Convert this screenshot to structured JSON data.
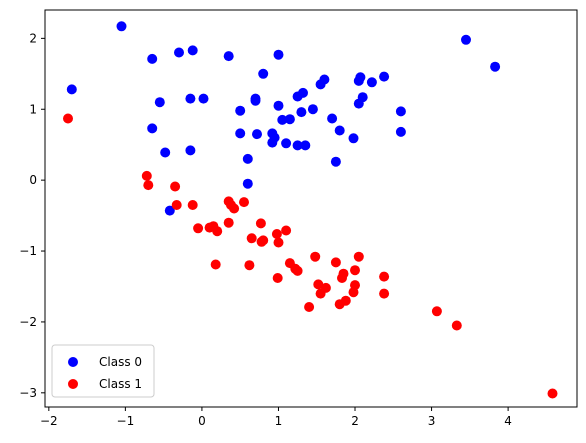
{
  "chart_data": {
    "type": "scatter",
    "title": "",
    "xlabel": "",
    "ylabel": "",
    "xlim": [
      -2.05,
      4.9
    ],
    "ylim": [
      -3.2,
      2.4
    ],
    "xticks": [
      -2,
      -1,
      0,
      1,
      2,
      3,
      4
    ],
    "yticks": [
      -3,
      -2,
      -1,
      0,
      1,
      2
    ],
    "grid": false,
    "legend": "lower-left",
    "series": [
      {
        "name": "Class 0",
        "color": "#0000ff",
        "points": [
          [
            -1.05,
            2.17
          ],
          [
            -0.65,
            1.71
          ],
          [
            -1.7,
            1.28
          ],
          [
            -0.55,
            1.1
          ],
          [
            -0.65,
            0.73
          ],
          [
            -0.48,
            0.39
          ],
          [
            -0.42,
            -0.43
          ],
          [
            -0.3,
            1.8
          ],
          [
            -0.12,
            1.83
          ],
          [
            -0.15,
            1.15
          ],
          [
            0.02,
            1.15
          ],
          [
            -0.15,
            0.42
          ],
          [
            0.35,
            1.75
          ],
          [
            0.5,
            0.98
          ],
          [
            0.5,
            0.66
          ],
          [
            0.6,
            0.3
          ],
          [
            0.6,
            -0.05
          ],
          [
            0.7,
            1.15
          ],
          [
            0.7,
            1.12
          ],
          [
            0.72,
            0.65
          ],
          [
            0.8,
            1.5
          ],
          [
            0.92,
            0.66
          ],
          [
            0.92,
            0.53
          ],
          [
            0.95,
            0.6
          ],
          [
            1.0,
            1.77
          ],
          [
            1.0,
            1.05
          ],
          [
            1.05,
            0.85
          ],
          [
            1.1,
            0.52
          ],
          [
            1.15,
            0.86
          ],
          [
            1.25,
            0.49
          ],
          [
            1.25,
            1.18
          ],
          [
            1.32,
            1.23
          ],
          [
            1.3,
            0.96
          ],
          [
            1.35,
            0.49
          ],
          [
            1.45,
            1.0
          ],
          [
            1.55,
            1.35
          ],
          [
            1.6,
            1.42
          ],
          [
            1.7,
            0.87
          ],
          [
            1.75,
            0.26
          ],
          [
            1.8,
            0.7
          ],
          [
            1.98,
            0.59
          ],
          [
            2.05,
            1.4
          ],
          [
            2.07,
            1.45
          ],
          [
            2.05,
            1.08
          ],
          [
            2.1,
            1.17
          ],
          [
            2.22,
            1.38
          ],
          [
            2.38,
            1.46
          ],
          [
            2.6,
            0.97
          ],
          [
            2.6,
            0.68
          ],
          [
            3.45,
            1.98
          ],
          [
            3.83,
            1.6
          ]
        ]
      },
      {
        "name": "Class 1",
        "color": "#ff0000",
        "points": [
          [
            -1.75,
            0.87
          ],
          [
            -0.72,
            0.06
          ],
          [
            -0.7,
            -0.07
          ],
          [
            -0.35,
            -0.09
          ],
          [
            -0.33,
            -0.35
          ],
          [
            -0.12,
            -0.35
          ],
          [
            -0.05,
            -0.68
          ],
          [
            0.1,
            -0.67
          ],
          [
            0.15,
            -0.65
          ],
          [
            0.2,
            -0.72
          ],
          [
            0.18,
            -1.19
          ],
          [
            0.35,
            -0.3
          ],
          [
            0.38,
            -0.35
          ],
          [
            0.42,
            -0.4
          ],
          [
            0.35,
            -0.6
          ],
          [
            0.55,
            -0.31
          ],
          [
            0.65,
            -0.82
          ],
          [
            0.62,
            -1.2
          ],
          [
            0.77,
            -0.61
          ],
          [
            0.78,
            -0.87
          ],
          [
            0.8,
            -0.85
          ],
          [
            0.98,
            -0.76
          ],
          [
            1.0,
            -0.88
          ],
          [
            0.99,
            -1.38
          ],
          [
            1.1,
            -0.71
          ],
          [
            1.15,
            -1.17
          ],
          [
            1.22,
            -1.25
          ],
          [
            1.25,
            -1.28
          ],
          [
            1.4,
            -1.79
          ],
          [
            1.48,
            -1.08
          ],
          [
            1.52,
            -1.47
          ],
          [
            1.55,
            -1.6
          ],
          [
            1.62,
            -1.52
          ],
          [
            1.75,
            -1.16
          ],
          [
            1.8,
            -1.75
          ],
          [
            1.83,
            -1.38
          ],
          [
            1.85,
            -1.32
          ],
          [
            1.88,
            -1.7
          ],
          [
            1.98,
            -1.58
          ],
          [
            2.0,
            -1.48
          ],
          [
            2.0,
            -1.27
          ],
          [
            2.05,
            -1.08
          ],
          [
            2.38,
            -1.36
          ],
          [
            2.38,
            -1.6
          ],
          [
            3.07,
            -1.85
          ],
          [
            3.33,
            -2.05
          ],
          [
            4.58,
            -3.01
          ]
        ]
      }
    ]
  }
}
